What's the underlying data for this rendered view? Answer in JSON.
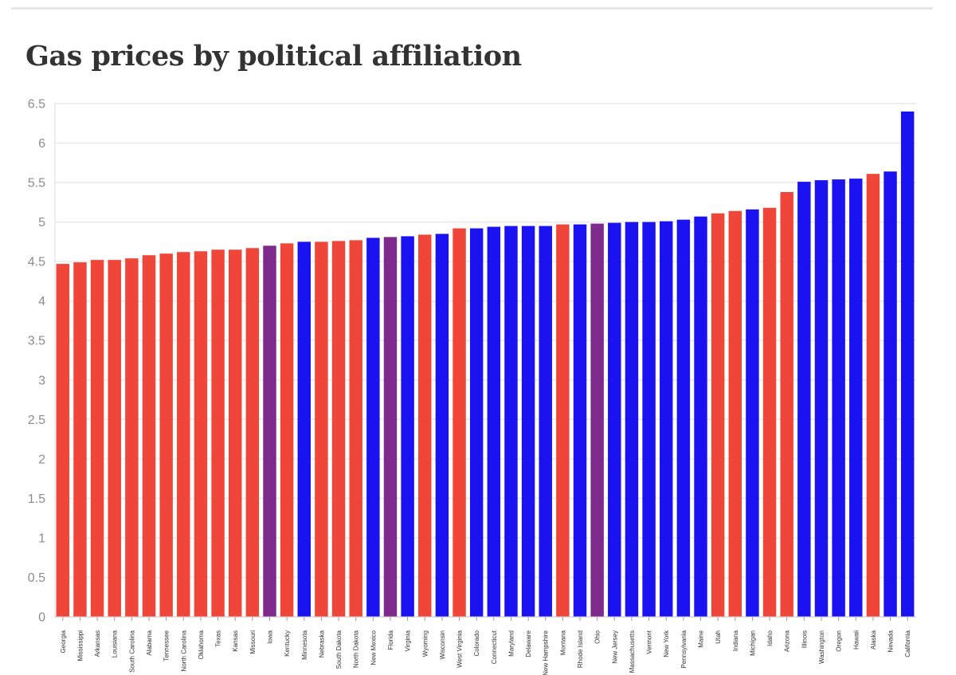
{
  "chart_data": {
    "type": "bar",
    "title": "Gas prices by political affiliation",
    "xlabel": "",
    "ylabel": "",
    "ylim": [
      0,
      6.5
    ],
    "yticks": [
      0,
      0.5,
      1,
      1.5,
      2,
      2.5,
      3,
      3.5,
      4,
      4.5,
      5,
      5.5,
      6,
      6.5
    ],
    "ytick_labels": [
      "0",
      "0.5",
      "1",
      "1.5",
      "2",
      "2.5",
      "3",
      "3.5",
      "4",
      "4.5",
      "5",
      "5.5",
      "6",
      "6.5"
    ],
    "grid": true,
    "legend": "none",
    "colors": {
      "R": "#ef4639",
      "D": "#1a12f0",
      "S": "#7e2a8c"
    },
    "categories": [
      "Georgia",
      "Mississippi",
      "Arkansas",
      "Louisiana",
      "South Carolina",
      "Alabama",
      "Tennessee",
      "North Carolina",
      "Oklahoma",
      "Texas",
      "Kansas",
      "Missouri",
      "Iowa",
      "Kentucky",
      "Minnesota",
      "Nebraska",
      "South Dakota",
      "North Dakota",
      "New Mexico",
      "Florida",
      "Virginia",
      "Wyoming",
      "Wisconsin",
      "West Virginia",
      "Colorado",
      "Connecticut",
      "Maryland",
      "Delaware",
      "New Hampshire",
      "Montana",
      "Rhode Island",
      "Ohio",
      "New Jersey",
      "Massachusetts",
      "Vermont",
      "New York",
      "Pennsylvania",
      "Maine",
      "Utah",
      "Indiana",
      "Michigan",
      "Idaho",
      "Arizona",
      "Illinois",
      "Washington",
      "Oregon",
      "Hawaii",
      "Alaska",
      "Nevada",
      "California"
    ],
    "values": [
      4.47,
      4.49,
      4.52,
      4.52,
      4.54,
      4.58,
      4.6,
      4.62,
      4.63,
      4.65,
      4.65,
      4.67,
      4.7,
      4.73,
      4.75,
      4.75,
      4.76,
      4.77,
      4.8,
      4.81,
      4.82,
      4.84,
      4.85,
      4.92,
      4.92,
      4.94,
      4.95,
      4.95,
      4.95,
      4.97,
      4.97,
      4.98,
      4.99,
      5.0,
      5.0,
      5.01,
      5.03,
      5.07,
      5.11,
      5.14,
      5.16,
      5.18,
      5.38,
      5.51,
      5.53,
      5.54,
      5.55,
      5.61,
      5.64,
      6.4
    ],
    "affiliation": [
      "R",
      "R",
      "R",
      "R",
      "R",
      "R",
      "R",
      "R",
      "R",
      "R",
      "R",
      "R",
      "S",
      "R",
      "D",
      "R",
      "R",
      "R",
      "D",
      "S",
      "D",
      "R",
      "D",
      "R",
      "D",
      "D",
      "D",
      "D",
      "D",
      "R",
      "D",
      "S",
      "D",
      "D",
      "D",
      "D",
      "D",
      "D",
      "R",
      "R",
      "D",
      "R",
      "R",
      "D",
      "D",
      "D",
      "D",
      "R",
      "D",
      "D"
    ]
  }
}
